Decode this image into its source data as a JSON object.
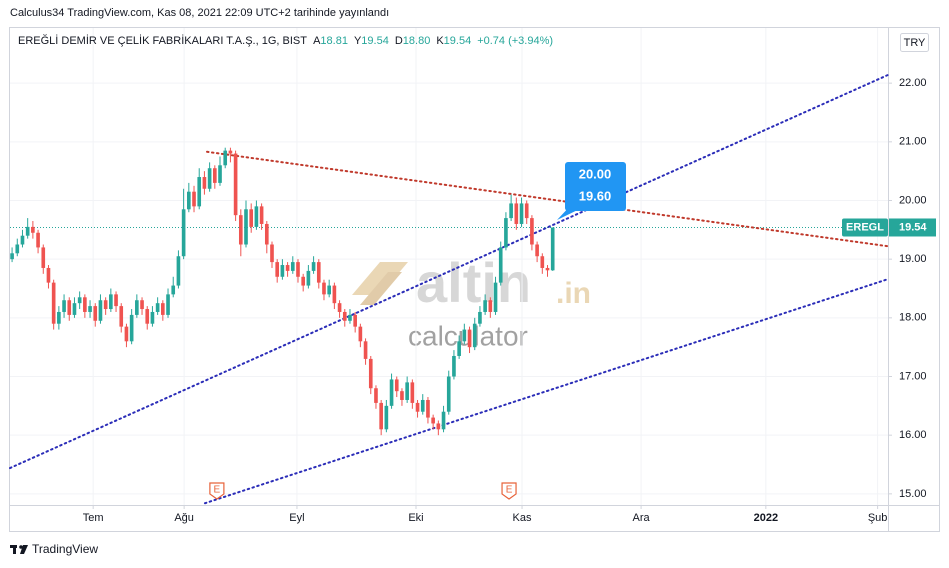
{
  "header": {
    "published": "Calculus34 TradingView.com, Kas 08, 2021 22:09 UTC+2 tarihinde yayınlandı",
    "symbol": "EREĞLİ DEMİR VE ÇELİK FABRİKALARI T.A.Ş., 1G, BIST",
    "ohlc": [
      {
        "label": "A",
        "value": "18.81"
      },
      {
        "label": "Y",
        "value": "19.54"
      },
      {
        "label": "D",
        "value": "18.80"
      },
      {
        "label": "K",
        "value": "19.54"
      }
    ],
    "change": "+0.74 (+3.94%)",
    "currency": "TRY"
  },
  "chart_data": {
    "type": "candlestick",
    "up_color": "#26a69a",
    "down_color": "#ef5350",
    "grid": true,
    "x": [
      0,
      1,
      2,
      3,
      4,
      5,
      6,
      7,
      8,
      9,
      10,
      11,
      12,
      13,
      14,
      15,
      16,
      17,
      18,
      19,
      20,
      21,
      22,
      23,
      24,
      25,
      26,
      27,
      28,
      29,
      30,
      31,
      32,
      33,
      34,
      35,
      36,
      37,
      38,
      39,
      40,
      41,
      42,
      43,
      44,
      45,
      46,
      47,
      48,
      49,
      50,
      51,
      52,
      53,
      54,
      55,
      56,
      57,
      58,
      59,
      60,
      61,
      62,
      63,
      64,
      65,
      66,
      67,
      68,
      69,
      70,
      71,
      72,
      73,
      74,
      75,
      76,
      77,
      78,
      79,
      80,
      81,
      82,
      83,
      84,
      85,
      86,
      87,
      88,
      89,
      90,
      91,
      92,
      93,
      94,
      95,
      96,
      97,
      98,
      99,
      100,
      101,
      102,
      103,
      104
    ],
    "open": [
      19.0,
      19.1,
      19.25,
      19.4,
      19.55,
      19.45,
      19.2,
      18.85,
      18.6,
      17.9,
      18.1,
      18.3,
      18.05,
      18.25,
      18.35,
      18.1,
      18.2,
      17.95,
      18.3,
      18.15,
      18.4,
      18.2,
      17.85,
      17.6,
      18.05,
      18.3,
      18.15,
      17.9,
      18.1,
      18.25,
      18.05,
      18.4,
      18.55,
      19.05,
      19.85,
      20.15,
      19.9,
      20.4,
      20.2,
      20.55,
      20.3,
      20.6,
      20.85,
      20.8,
      19.75,
      19.25,
      19.85,
      19.55,
      19.9,
      19.6,
      19.25,
      18.95,
      18.7,
      18.9,
      18.8,
      18.95,
      18.7,
      18.55,
      18.8,
      18.95,
      18.6,
      18.4,
      18.55,
      18.25,
      18.1,
      17.95,
      18.05,
      17.85,
      17.6,
      17.3,
      16.8,
      16.55,
      16.1,
      16.5,
      16.95,
      16.75,
      16.6,
      16.9,
      16.55,
      16.4,
      16.6,
      16.3,
      16.2,
      16.1,
      16.4,
      17.0,
      17.35,
      17.6,
      17.8,
      17.5,
      17.9,
      18.1,
      18.3,
      18.1,
      18.6,
      19.2,
      19.7,
      19.95,
      19.6,
      19.95,
      19.7,
      19.25,
      19.05,
      18.85,
      18.81
    ],
    "high": [
      19.2,
      19.35,
      19.5,
      19.7,
      19.65,
      19.5,
      19.25,
      18.9,
      18.65,
      18.2,
      18.4,
      18.35,
      18.35,
      18.45,
      18.4,
      18.3,
      18.25,
      18.4,
      18.35,
      18.5,
      18.45,
      18.25,
      17.9,
      18.15,
      18.4,
      18.35,
      18.2,
      18.2,
      18.35,
      18.3,
      18.5,
      18.7,
      19.15,
      20.2,
      20.3,
      20.25,
      20.55,
      20.5,
      20.65,
      20.6,
      20.75,
      20.9,
      20.9,
      20.85,
      19.85,
      20.0,
      19.95,
      20.0,
      19.95,
      19.65,
      19.3,
      19.0,
      19.0,
      18.95,
      19.05,
      19.0,
      18.75,
      18.9,
      19.05,
      19.0,
      18.65,
      18.65,
      18.6,
      18.3,
      18.15,
      18.15,
      18.1,
      17.9,
      17.65,
      17.35,
      16.85,
      16.6,
      16.6,
      17.05,
      17.0,
      16.8,
      17.0,
      16.95,
      16.6,
      16.7,
      16.65,
      16.35,
      16.25,
      16.5,
      17.1,
      17.45,
      17.7,
      17.9,
      17.85,
      18.0,
      18.2,
      18.4,
      18.35,
      18.7,
      19.3,
      19.8,
      20.1,
      20.05,
      20.05,
      20.0,
      19.75,
      19.3,
      19.1,
      18.9,
      19.54
    ],
    "low": [
      18.95,
      19.05,
      19.2,
      19.35,
      19.35,
      19.1,
      18.75,
      18.5,
      17.8,
      17.8,
      18.0,
      17.95,
      18.0,
      18.15,
      18.0,
      18.0,
      17.85,
      17.9,
      18.05,
      18.1,
      18.1,
      17.75,
      17.5,
      17.55,
      18.0,
      18.05,
      17.8,
      17.85,
      18.05,
      17.95,
      18.0,
      18.35,
      18.5,
      19.0,
      19.8,
      19.8,
      19.85,
      20.1,
      20.15,
      20.2,
      20.25,
      20.55,
      20.65,
      19.65,
      19.05,
      19.2,
      19.45,
      19.5,
      19.5,
      19.1,
      18.85,
      18.6,
      18.65,
      18.7,
      18.75,
      18.6,
      18.45,
      18.5,
      18.75,
      18.5,
      18.3,
      18.35,
      18.15,
      18.0,
      17.85,
      17.9,
      17.75,
      17.5,
      17.2,
      16.7,
      16.45,
      16.0,
      16.05,
      16.45,
      16.65,
      16.5,
      16.55,
      16.45,
      16.3,
      16.35,
      16.2,
      16.1,
      16.0,
      16.05,
      16.35,
      16.95,
      17.3,
      17.55,
      17.4,
      17.45,
      17.85,
      18.05,
      18.0,
      18.05,
      18.55,
      19.15,
      19.65,
      19.5,
      19.55,
      19.6,
      19.15,
      18.95,
      18.75,
      18.7,
      18.8
    ],
    "close": [
      19.1,
      19.25,
      19.4,
      19.55,
      19.45,
      19.2,
      18.85,
      18.6,
      17.9,
      18.1,
      18.3,
      18.05,
      18.25,
      18.35,
      18.1,
      18.2,
      17.95,
      18.3,
      18.15,
      18.4,
      18.2,
      17.85,
      17.6,
      18.05,
      18.3,
      18.15,
      17.9,
      18.1,
      18.25,
      18.05,
      18.4,
      18.55,
      19.05,
      19.85,
      20.15,
      19.9,
      20.4,
      20.2,
      20.55,
      20.3,
      20.6,
      20.85,
      20.8,
      19.75,
      19.25,
      19.85,
      19.55,
      19.9,
      19.6,
      19.25,
      18.95,
      18.7,
      18.9,
      18.8,
      18.95,
      18.7,
      18.55,
      18.8,
      18.95,
      18.6,
      18.4,
      18.55,
      18.25,
      18.1,
      17.95,
      18.05,
      17.85,
      17.6,
      17.3,
      16.8,
      16.55,
      16.1,
      16.5,
      16.95,
      16.75,
      16.6,
      16.9,
      16.55,
      16.4,
      16.6,
      16.3,
      16.2,
      16.1,
      16.4,
      17.0,
      17.35,
      17.6,
      17.8,
      17.5,
      17.9,
      18.1,
      18.3,
      18.1,
      18.6,
      19.2,
      19.7,
      19.95,
      19.6,
      19.95,
      19.7,
      19.25,
      19.05,
      18.85,
      18.81,
      19.54
    ],
    "xlim": [
      -0.4,
      168.5
    ],
    "ylim": [
      14.81,
      22.94
    ],
    "xticks": [
      {
        "value": 15.6,
        "label": "Tem"
      },
      {
        "value": 33.1,
        "label": "Ağu"
      },
      {
        "value": 54.8,
        "label": "Eyl"
      },
      {
        "value": 77.7,
        "label": "Eki"
      },
      {
        "value": 98.1,
        "label": "Kas"
      },
      {
        "value": 121.0,
        "label": "Ara"
      },
      {
        "value": 145.0,
        "label": "2022"
      },
      {
        "value": 166.5,
        "label": "Şub"
      }
    ],
    "yticks": [
      {
        "value": 15,
        "label": "15.00"
      },
      {
        "value": 16,
        "label": "16.00"
      },
      {
        "value": 17,
        "label": "17.00"
      },
      {
        "value": 18,
        "label": "18.00"
      },
      {
        "value": 19,
        "label": "19.00"
      },
      {
        "value": 20,
        "label": "20.00"
      },
      {
        "value": 21,
        "label": "21.00"
      },
      {
        "value": 22,
        "label": "22.00"
      }
    ],
    "trend_lines": [
      {
        "color": "#2b2db8",
        "x": [
          -0.4,
          168.5
        ],
        "y": [
          15.44,
          22.14
        ]
      },
      {
        "color": "#c0392b",
        "x": [
          37.5,
          168.5
        ],
        "y": [
          20.83,
          19.22
        ]
      },
      {
        "color": "#2b2db8",
        "x": [
          37.1,
          168.5
        ],
        "y": [
          14.84,
          18.66
        ]
      }
    ],
    "last_price": {
      "symbol": "EREGL",
      "value": 19.54,
      "color": "#26a69a"
    },
    "events": [
      {
        "x": 39.4,
        "label": "E"
      },
      {
        "x": 95.6,
        "label": "E"
      }
    ],
    "annotations": [
      "20.00",
      "19.60"
    ]
  },
  "watermark": {
    "brand": "altin",
    "domain": ".in",
    "sub": "calculator"
  },
  "footer": "TradingView"
}
